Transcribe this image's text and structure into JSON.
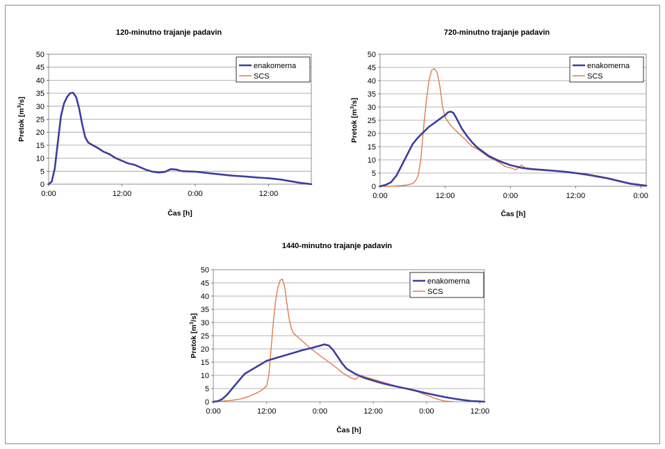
{
  "chart_data": [
    {
      "type": "line",
      "title": "120-minutno trajanje padavin",
      "xlabel": "Čas [h]",
      "ylabel": "Pretok [m³/s]",
      "ylabel_parts": {
        "pre": "Pretok [m",
        "sup": "3",
        "post": "/s]"
      },
      "ylim": [
        0,
        50
      ],
      "yticks": [
        "0",
        "5",
        "10",
        "15",
        "20",
        "25",
        "30",
        "35",
        "40",
        "45",
        "50"
      ],
      "xlim": [
        0,
        43
      ],
      "xticks": [
        {
          "x": 0,
          "label": "0:00"
        },
        {
          "x": 12,
          "label": "12:00"
        },
        {
          "x": 24,
          "label": "0:00"
        },
        {
          "x": 36,
          "label": "12:00"
        }
      ],
      "grid": true,
      "legend_position": "top-right",
      "series": [
        {
          "name": "enakomerna",
          "color": "#3d3d9e",
          "x": [
            0,
            0.5,
            1,
            1.5,
            2,
            2.5,
            3,
            3.5,
            4,
            4.5,
            5,
            5.5,
            6,
            6.5,
            7,
            8,
            9,
            10,
            11,
            12,
            13,
            14,
            15,
            16,
            17,
            18,
            19,
            20,
            21,
            21.5,
            22,
            23,
            24,
            26,
            28,
            30,
            32,
            34,
            36,
            38,
            40,
            41,
            42,
            43
          ],
          "y": [
            0,
            1,
            6,
            16,
            26,
            31,
            33.5,
            35,
            35.2,
            33.5,
            29,
            23,
            18,
            16,
            15.3,
            14,
            12.5,
            11.5,
            10,
            9,
            8,
            7.5,
            6.5,
            5.5,
            4.8,
            4.5,
            4.7,
            5.8,
            5.6,
            5.2,
            5,
            4.9,
            4.8,
            4.3,
            3.8,
            3.3,
            3,
            2.6,
            2.3,
            1.8,
            1,
            0.6,
            0.3,
            0
          ]
        },
        {
          "name": "SCS",
          "color": "#e07a4a",
          "x": [
            0,
            0.5,
            1,
            1.5,
            2,
            2.5,
            3,
            3.5,
            4,
            4.5,
            5,
            5.5,
            6,
            6.5,
            7,
            8,
            9,
            10,
            11,
            12,
            13,
            14,
            15,
            16,
            17,
            18,
            19,
            20,
            21,
            21.5,
            22,
            23,
            24,
            26,
            28,
            30,
            32,
            34,
            36,
            38,
            40,
            41,
            42,
            43
          ],
          "y": [
            0,
            1,
            6,
            16,
            26,
            31,
            33.5,
            35,
            35.2,
            33.5,
            29,
            23,
            18,
            16,
            15.3,
            14,
            12.5,
            11.5,
            10,
            9,
            8,
            7.5,
            6.5,
            5.5,
            4.8,
            4.5,
            4.7,
            5.8,
            5.6,
            5.2,
            5,
            4.9,
            4.8,
            4.3,
            3.8,
            3.3,
            3,
            2.6,
            2.3,
            1.8,
            1,
            0.6,
            0.3,
            0
          ]
        }
      ]
    },
    {
      "type": "line",
      "title": "720-minutno trajanje padavin",
      "xlabel": "Čas [h]",
      "ylabel": "Pretok [m³/s]",
      "ylabel_parts": {
        "pre": "Pretok [m",
        "sup": "3",
        "post": "/s]"
      },
      "ylim": [
        0,
        50
      ],
      "yticks": [
        "0",
        "5",
        "10",
        "15",
        "20",
        "25",
        "30",
        "35",
        "40",
        "45",
        "50"
      ],
      "xlim": [
        0,
        49
      ],
      "xticks": [
        {
          "x": 0,
          "label": "0:00"
        },
        {
          "x": 12,
          "label": "12:00"
        },
        {
          "x": 24,
          "label": "0:00"
        },
        {
          "x": 36,
          "label": "12:00"
        },
        {
          "x": 48,
          "label": "0:00"
        }
      ],
      "grid": true,
      "legend_position": "top-right",
      "series": [
        {
          "name": "enakomerna",
          "color": "#3d3d9e",
          "x": [
            0,
            1,
            2,
            3,
            4,
            5,
            6,
            7,
            8,
            9,
            10,
            11,
            12,
            12.5,
            13,
            13.5,
            14,
            15,
            16,
            17,
            18,
            19,
            20,
            22,
            24,
            26,
            28,
            30,
            34,
            38,
            42,
            46,
            49
          ],
          "y": [
            0,
            0.5,
            1.5,
            4,
            8,
            12,
            16,
            18.5,
            20.5,
            22.5,
            24,
            25.5,
            27,
            28,
            28.3,
            27.8,
            26,
            22,
            19,
            16.5,
            14.5,
            13,
            11.5,
            9.5,
            8,
            7,
            6.5,
            6.2,
            5.5,
            4.5,
            3,
            1,
            0.2
          ]
        },
        {
          "name": "SCS",
          "color": "#e07a4a",
          "x": [
            0,
            2,
            4,
            5,
            6,
            6.5,
            7,
            7.5,
            8,
            8.5,
            9,
            9.5,
            10,
            10.5,
            11,
            11.5,
            12,
            13,
            14,
            15,
            16,
            17,
            18,
            19,
            20,
            22,
            23,
            24,
            25,
            26,
            27,
            28,
            30,
            34,
            38,
            42,
            46,
            49
          ],
          "y": [
            0,
            0,
            0.3,
            0.5,
            1,
            2,
            4,
            10,
            22,
            32,
            40,
            44,
            44.5,
            43,
            38,
            30,
            26,
            23,
            21,
            19,
            17,
            15,
            14,
            12.5,
            11,
            9,
            7.5,
            7,
            6.2,
            8,
            6.5,
            6.3,
            6,
            5.5,
            4.2,
            2.8,
            0.8,
            0.1
          ]
        }
      ]
    },
    {
      "type": "line",
      "title": "1440-minutno trajanje padavin",
      "xlabel": "Čas [h]",
      "ylabel": "Pretok [m³/s]",
      "ylabel_parts": {
        "pre": "Pretok [m",
        "sup": "3",
        "post": "/s]"
      },
      "ylim": [
        0,
        50
      ],
      "yticks": [
        "0",
        "5",
        "10",
        "15",
        "20",
        "25",
        "30",
        "35",
        "40",
        "45",
        "50"
      ],
      "xlim": [
        0,
        61
      ],
      "xticks": [
        {
          "x": 0,
          "label": "0:00"
        },
        {
          "x": 12,
          "label": "12:00"
        },
        {
          "x": 24,
          "label": "0:00"
        },
        {
          "x": 36,
          "label": "12:00"
        },
        {
          "x": 48,
          "label": "0:00"
        },
        {
          "x": 60,
          "label": "12:00"
        }
      ],
      "grid": true,
      "legend_position": "top-right",
      "series": [
        {
          "name": "enakomerna",
          "color": "#3d3d9e",
          "x": [
            0,
            1,
            2,
            3,
            4,
            5,
            6,
            7,
            8,
            10,
            12,
            14,
            16,
            18,
            20,
            22,
            23,
            24,
            25,
            26,
            27,
            28,
            29,
            30,
            32,
            34,
            36,
            38,
            40,
            42,
            44,
            46,
            48,
            50,
            52,
            54,
            56,
            58,
            60,
            61
          ],
          "y": [
            0,
            0.2,
            1,
            2.5,
            4.5,
            6.5,
            8.5,
            10.5,
            11.5,
            13.5,
            15.5,
            16.5,
            17.5,
            18.5,
            19.5,
            20.3,
            20.8,
            21.2,
            21.7,
            21.3,
            19.5,
            17,
            14.5,
            12.5,
            10.5,
            9,
            8,
            7,
            6.2,
            5.5,
            4.8,
            4,
            3.2,
            2.5,
            1.8,
            1.2,
            0.7,
            0.3,
            0.1,
            0
          ]
        },
        {
          "name": "SCS",
          "color": "#e07a4a",
          "x": [
            0,
            2,
            4,
            6,
            8,
            10,
            11,
            12,
            12.5,
            13,
            13.5,
            14,
            14.5,
            15,
            15.5,
            16,
            16.5,
            17,
            17.5,
            18,
            19,
            20,
            22,
            24,
            26,
            28,
            29,
            30,
            31,
            32,
            33,
            33.5,
            34,
            36,
            38,
            40,
            42,
            44,
            46,
            48,
            50,
            52,
            54
          ],
          "y": [
            0,
            0.2,
            0.5,
            1,
            2,
            3.5,
            4.5,
            6,
            10,
            20,
            30,
            38,
            43,
            45.8,
            46.5,
            44,
            38,
            32,
            28,
            26,
            24.5,
            23,
            20,
            17.5,
            15,
            12.5,
            11,
            10,
            9,
            8.5,
            10,
            9.8,
            9.5,
            8.5,
            7.5,
            6.5,
            5.5,
            4.8,
            3.8,
            2.5,
            1.2,
            0.3,
            0
          ]
        }
      ]
    }
  ]
}
